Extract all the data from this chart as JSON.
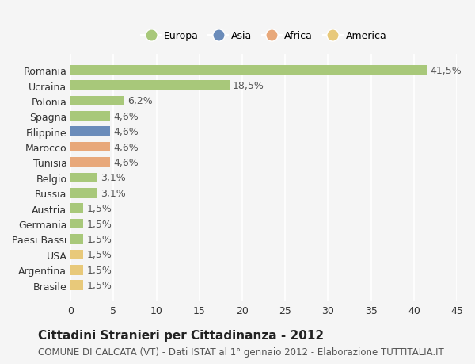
{
  "categories": [
    "Brasile",
    "Argentina",
    "USA",
    "Paesi Bassi",
    "Germania",
    "Austria",
    "Russia",
    "Belgio",
    "Tunisia",
    "Marocco",
    "Filippine",
    "Spagna",
    "Polonia",
    "Ucraina",
    "Romania"
  ],
  "values": [
    1.5,
    1.5,
    1.5,
    1.5,
    1.5,
    1.5,
    3.1,
    3.1,
    4.6,
    4.6,
    4.6,
    4.6,
    6.2,
    18.5,
    41.5
  ],
  "labels": [
    "1,5%",
    "1,5%",
    "1,5%",
    "1,5%",
    "1,5%",
    "1,5%",
    "3,1%",
    "3,1%",
    "4,6%",
    "4,6%",
    "4,6%",
    "4,6%",
    "6,2%",
    "18,5%",
    "41,5%"
  ],
  "colors": [
    "#e8c97a",
    "#e8c97a",
    "#e8c97a",
    "#a8c87a",
    "#a8c87a",
    "#a8c87a",
    "#a8c87a",
    "#a8c87a",
    "#e8a87a",
    "#e8a87a",
    "#6b8cba",
    "#a8c87a",
    "#a8c87a",
    "#a8c87a",
    "#a8c87a"
  ],
  "continent_colors": {
    "Europa": "#a8c87a",
    "Asia": "#6b8cba",
    "Africa": "#e8a87a",
    "America": "#e8c97a"
  },
  "title": "Cittadini Stranieri per Cittadinanza - 2012",
  "subtitle": "COMUNE DI CALCATA (VT) - Dati ISTAT al 1° gennaio 2012 - Elaborazione TUTTITALIA.IT",
  "xlim": [
    0,
    45
  ],
  "xticks": [
    0,
    5,
    10,
    15,
    20,
    25,
    30,
    35,
    40,
    45
  ],
  "bg_color": "#f5f5f5",
  "grid_color": "#ffffff",
  "bar_height": 0.65,
  "label_fontsize": 9,
  "tick_fontsize": 9,
  "title_fontsize": 11,
  "subtitle_fontsize": 8.5
}
